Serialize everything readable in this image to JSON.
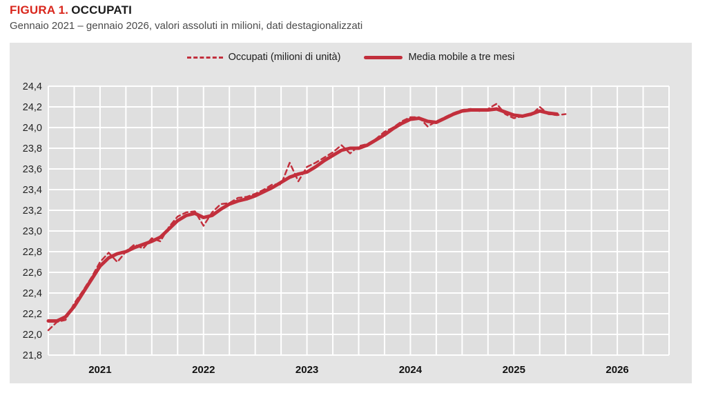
{
  "header": {
    "figure_label": "FIGURA 1.",
    "figure_title": "OCCUPATI",
    "subtitle": "Gennaio 2021 – gennaio 2026, valori assoluti in milioni, dati destagionalizzati"
  },
  "colors": {
    "series_red": "#c22f3c",
    "title_red": "#d9261c",
    "figure_bg": "#e4e4e4",
    "plot_bg": "#dfdfdf",
    "grid": "#ffffff"
  },
  "chart_data": {
    "type": "line",
    "title": "FIGURA 1. OCCUPATI",
    "subtitle": "Gennaio 2021 – gennaio 2026, valori assoluti in milioni, dati destagionalizzati",
    "xlabel": "",
    "ylabel": "milioni di unità",
    "ylim": [
      21.8,
      24.4
    ],
    "y_step": 0.2,
    "y_ticks": [
      "24,4",
      "24,2",
      "24,0",
      "23,8",
      "23,6",
      "23,4",
      "23,2",
      "23,0",
      "22,8",
      "22,6",
      "22,4",
      "22,2",
      "22,0",
      "21,8"
    ],
    "x_ticks": [
      "2021",
      "2022",
      "2023",
      "2024",
      "2025",
      "2026"
    ],
    "x_total_months": 72,
    "x_gridline_every_months": 3,
    "x_start": "gennaio 2021",
    "x_end": "gennaio 2026",
    "grid": "on, white gridlines over gray plot area",
    "legend_position": "top-center",
    "series": [
      {
        "name": "Occupati (milioni di unità)",
        "style": "dashed",
        "color": "#c22f3c",
        "start_month": 0,
        "values": [
          22.04,
          22.12,
          22.14,
          22.3,
          22.42,
          22.55,
          22.7,
          22.79,
          22.7,
          22.8,
          22.87,
          22.83,
          22.93,
          22.9,
          23.04,
          23.14,
          23.18,
          23.19,
          23.05,
          23.18,
          23.26,
          23.27,
          23.32,
          23.33,
          23.36,
          23.4,
          23.45,
          23.45,
          23.66,
          23.48,
          23.62,
          23.66,
          23.71,
          23.76,
          23.83,
          23.75,
          23.82,
          23.84,
          23.89,
          23.96,
          24.0,
          24.06,
          24.1,
          24.1,
          24.01,
          24.06,
          24.1,
          24.14,
          24.17,
          24.18,
          24.16,
          24.18,
          24.23,
          24.13,
          24.09,
          24.11,
          24.12,
          24.2,
          24.13,
          24.12,
          24.13
        ]
      },
      {
        "name": "Media mobile a tre mesi",
        "style": "solid",
        "color": "#c22f3c",
        "start_month": 0,
        "values": [
          22.13,
          22.13,
          22.17,
          22.27,
          22.4,
          22.53,
          22.66,
          22.74,
          22.78,
          22.8,
          22.84,
          22.87,
          22.9,
          22.94,
          23.02,
          23.1,
          23.15,
          23.17,
          23.13,
          23.15,
          23.21,
          23.26,
          23.29,
          23.31,
          23.34,
          23.38,
          23.42,
          23.47,
          23.52,
          23.55,
          23.57,
          23.62,
          23.68,
          23.73,
          23.78,
          23.8,
          23.8,
          23.83,
          23.88,
          23.93,
          23.99,
          24.04,
          24.08,
          24.09,
          24.06,
          24.05,
          24.09,
          24.13,
          24.16,
          24.17,
          24.17,
          24.17,
          24.18,
          24.15,
          24.12,
          24.11,
          24.13,
          24.16,
          24.14,
          24.13
        ]
      }
    ]
  }
}
